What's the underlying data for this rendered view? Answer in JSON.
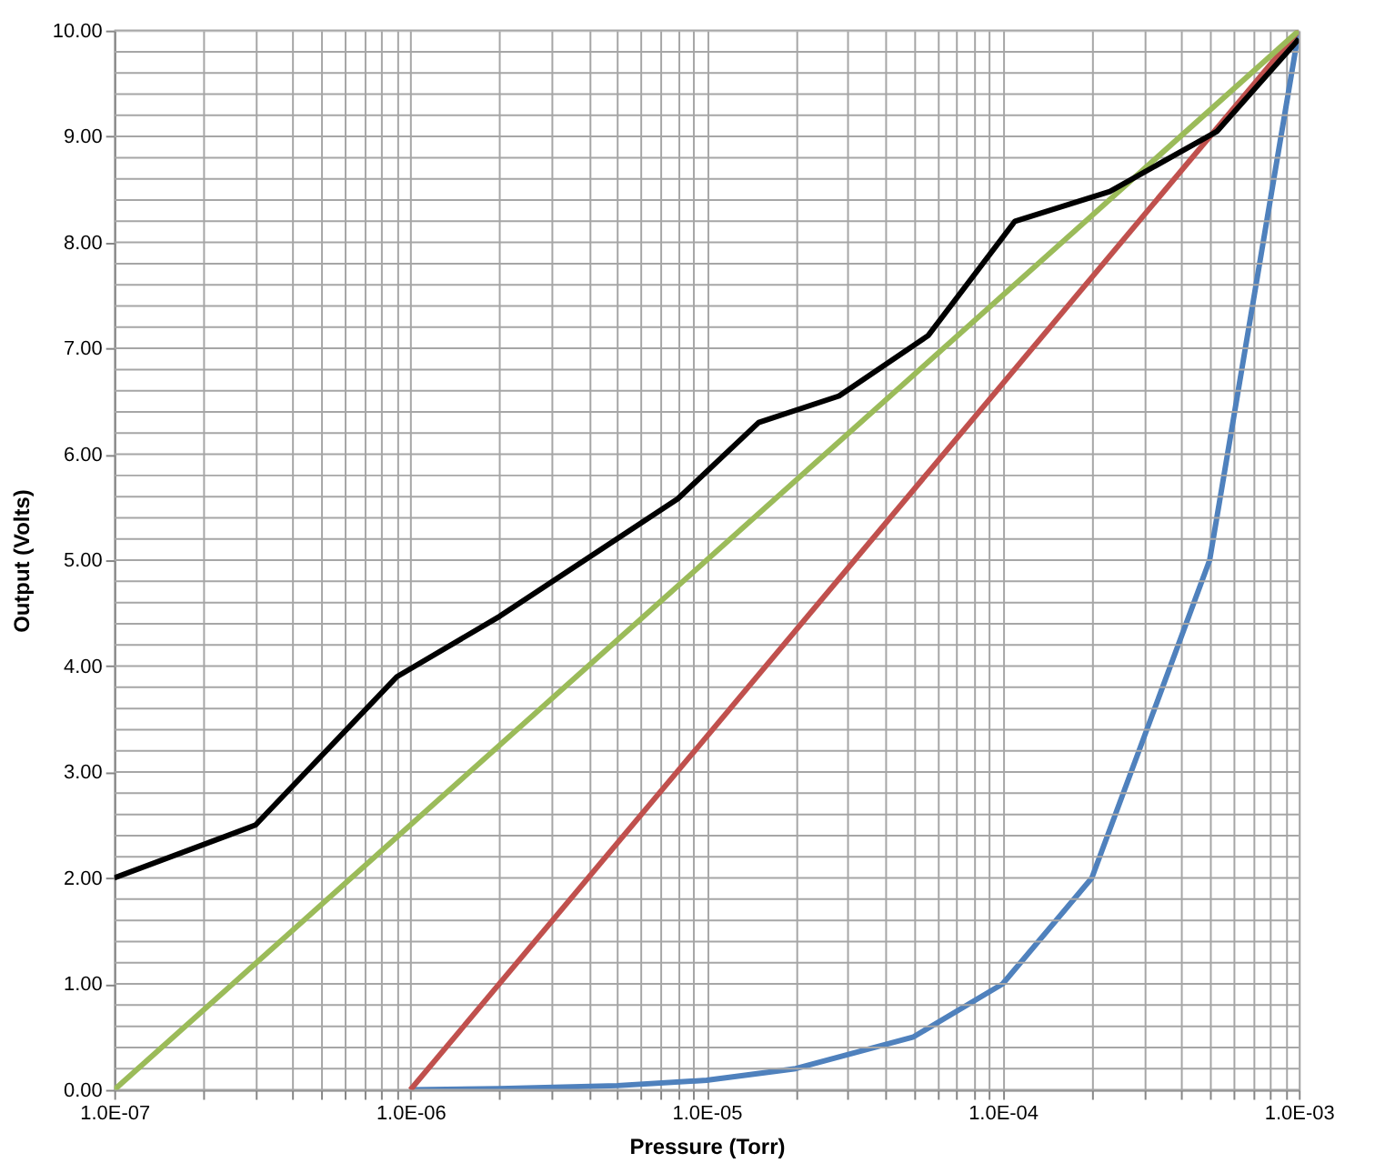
{
  "chart_data": {
    "type": "line",
    "xlabel": "Pressure (Torr)",
    "ylabel": "Output (Volts)",
    "log": "x",
    "grid": true,
    "legend": false,
    "marker": "none",
    "line_style": "solid",
    "xlim": [
      1e-07,
      0.001
    ],
    "ylim": [
      0,
      10
    ],
    "xticks": [
      {
        "value": 1e-07,
        "label": "1.0E-07"
      },
      {
        "value": 2e-07,
        "label": null
      },
      {
        "value": 3e-07,
        "label": null
      },
      {
        "value": 4e-07,
        "label": null
      },
      {
        "value": 5e-07,
        "label": null
      },
      {
        "value": 6e-07,
        "label": null
      },
      {
        "value": 7e-07,
        "label": null
      },
      {
        "value": 8e-07,
        "label": null
      },
      {
        "value": 9e-07,
        "label": null
      },
      {
        "value": 1e-06,
        "label": "1.0E-06"
      },
      {
        "value": 2e-06,
        "label": null
      },
      {
        "value": 3e-06,
        "label": null
      },
      {
        "value": 4e-06,
        "label": null
      },
      {
        "value": 5e-06,
        "label": null
      },
      {
        "value": 6e-06,
        "label": null
      },
      {
        "value": 7e-06,
        "label": null
      },
      {
        "value": 8e-06,
        "label": null
      },
      {
        "value": 9e-06,
        "label": null
      },
      {
        "value": 1e-05,
        "label": "1.0E-05"
      },
      {
        "value": 2e-05,
        "label": null
      },
      {
        "value": 3e-05,
        "label": null
      },
      {
        "value": 4e-05,
        "label": null
      },
      {
        "value": 5e-05,
        "label": null
      },
      {
        "value": 6e-05,
        "label": null
      },
      {
        "value": 7e-05,
        "label": null
      },
      {
        "value": 8e-05,
        "label": null
      },
      {
        "value": 9e-05,
        "label": null
      },
      {
        "value": 0.0001,
        "label": "1.0E-04"
      },
      {
        "value": 0.0002,
        "label": null
      },
      {
        "value": 0.0003,
        "label": null
      },
      {
        "value": 0.0004,
        "label": null
      },
      {
        "value": 0.0005,
        "label": null
      },
      {
        "value": 0.0006,
        "label": null
      },
      {
        "value": 0.0007,
        "label": null
      },
      {
        "value": 0.0008,
        "label": null
      },
      {
        "value": 0.0009,
        "label": null
      },
      {
        "value": 0.001,
        "label": "1.0E-03"
      }
    ],
    "yticks": [
      {
        "value": 0,
        "label": "0.00"
      },
      {
        "value": 0.2,
        "label": null
      },
      {
        "value": 0.4,
        "label": null
      },
      {
        "value": 0.6,
        "label": null
      },
      {
        "value": 0.8,
        "label": null
      },
      {
        "value": 1,
        "label": "1.00"
      },
      {
        "value": 1.2,
        "label": null
      },
      {
        "value": 1.4,
        "label": null
      },
      {
        "value": 1.6,
        "label": null
      },
      {
        "value": 1.8,
        "label": null
      },
      {
        "value": 2,
        "label": "2.00"
      },
      {
        "value": 2.2,
        "label": null
      },
      {
        "value": 2.4,
        "label": null
      },
      {
        "value": 2.6,
        "label": null
      },
      {
        "value": 2.8,
        "label": null
      },
      {
        "value": 3,
        "label": "3.00"
      },
      {
        "value": 3.2,
        "label": null
      },
      {
        "value": 3.4,
        "label": null
      },
      {
        "value": 3.6,
        "label": null
      },
      {
        "value": 3.8,
        "label": null
      },
      {
        "value": 4,
        "label": "4.00"
      },
      {
        "value": 4.2,
        "label": null
      },
      {
        "value": 4.4,
        "label": null
      },
      {
        "value": 4.6,
        "label": null
      },
      {
        "value": 4.8,
        "label": null
      },
      {
        "value": 5,
        "label": "5.00"
      },
      {
        "value": 5.2,
        "label": null
      },
      {
        "value": 5.4,
        "label": null
      },
      {
        "value": 5.6,
        "label": null
      },
      {
        "value": 5.8,
        "label": null
      },
      {
        "value": 6,
        "label": "6.00"
      },
      {
        "value": 6.2,
        "label": null
      },
      {
        "value": 6.4,
        "label": null
      },
      {
        "value": 6.6,
        "label": null
      },
      {
        "value": 6.8,
        "label": null
      },
      {
        "value": 7,
        "label": "7.00"
      },
      {
        "value": 7.2,
        "label": null
      },
      {
        "value": 7.4,
        "label": null
      },
      {
        "value": 7.6,
        "label": null
      },
      {
        "value": 7.8,
        "label": null
      },
      {
        "value": 8,
        "label": "8.00"
      },
      {
        "value": 8.2,
        "label": null
      },
      {
        "value": 8.4,
        "label": null
      },
      {
        "value": 8.6,
        "label": null
      },
      {
        "value": 8.8,
        "label": null
      },
      {
        "value": 9,
        "label": "9.00"
      },
      {
        "value": 9.2,
        "label": null
      },
      {
        "value": 9.4,
        "label": null
      },
      {
        "value": 9.6,
        "label": null
      },
      {
        "value": 9.8,
        "label": null
      },
      {
        "value": 10,
        "label": "10.00"
      }
    ],
    "series": [
      {
        "color": "#4f81bd",
        "x": [
          1e-06,
          2e-06,
          5e-06,
          1e-05,
          2e-05,
          5e-05,
          0.0001,
          0.0002,
          0.0005,
          0.001
        ],
        "values": [
          0,
          0.01,
          0.04,
          0.09,
          0.2,
          0.5,
          1.0,
          2.0,
          5.0,
          10.0
        ]
      },
      {
        "color": "#c0504d",
        "x": [
          1e-06,
          0.001
        ],
        "values": [
          0,
          10
        ]
      },
      {
        "color": "#9bbb59",
        "x": [
          1e-07,
          0.001
        ],
        "values": [
          0,
          10
        ]
      },
      {
        "color": "#000000",
        "x": [
          1e-07,
          3e-07,
          9e-07,
          2e-06,
          8e-06,
          1.5e-05,
          2.8e-05,
          5.6e-05,
          0.00011,
          0.00023,
          0.00053,
          0.001
        ],
        "values": [
          2.0,
          2.5,
          3.9,
          4.47,
          5.58,
          6.3,
          6.55,
          7.12,
          8.2,
          8.48,
          9.05,
          9.92
        ]
      }
    ]
  }
}
